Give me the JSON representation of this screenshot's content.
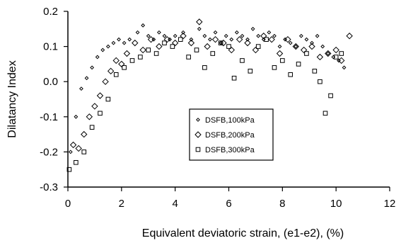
{
  "chart_data": {
    "type": "scatter",
    "xlabel": "Equivalent deviatoric strain, (e1-e2), (%)",
    "ylabel": "Dilatancy Index",
    "xlim": [
      0,
      12
    ],
    "ylim": [
      -0.3,
      0.2
    ],
    "x_ticks": [
      0,
      2,
      4,
      6,
      8,
      10,
      12
    ],
    "x_tick_labels": [
      "0",
      "2",
      "4",
      "6",
      "8",
      "10",
      "12"
    ],
    "y_ticks": [
      -0.3,
      -0.2,
      -0.1,
      0.0,
      0.1,
      0.2
    ],
    "y_tick_labels": [
      "-0.3",
      "-0.2",
      "-0.1",
      "0.0",
      "0.1",
      "0.2"
    ],
    "grid": false,
    "legend_position": "center-right",
    "series": [
      {
        "name": "DSFB,100kPa",
        "marker": "small-diamond",
        "points": [
          [
            0.1,
            -0.2
          ],
          [
            0.3,
            -0.1
          ],
          [
            0.5,
            -0.02
          ],
          [
            0.7,
            0.01
          ],
          [
            0.9,
            0.04
          ],
          [
            1.1,
            0.07
          ],
          [
            1.3,
            0.09
          ],
          [
            1.5,
            0.1
          ],
          [
            1.7,
            0.11
          ],
          [
            1.9,
            0.12
          ],
          [
            2.1,
            0.11
          ],
          [
            2.3,
            0.12
          ],
          [
            2.6,
            0.14
          ],
          [
            2.8,
            0.16
          ],
          [
            3.0,
            0.13
          ],
          [
            3.2,
            0.12
          ],
          [
            3.4,
            0.14
          ],
          [
            3.6,
            0.13
          ],
          [
            3.8,
            0.12
          ],
          [
            4.0,
            0.13
          ],
          [
            4.3,
            0.14
          ],
          [
            4.6,
            0.12
          ],
          [
            4.9,
            0.15
          ],
          [
            5.1,
            0.13
          ],
          [
            5.3,
            0.12
          ],
          [
            5.5,
            0.14
          ],
          [
            5.7,
            0.11
          ],
          [
            5.9,
            0.13
          ],
          [
            6.1,
            0.12
          ],
          [
            6.3,
            0.14
          ],
          [
            6.5,
            0.13
          ],
          [
            6.7,
            0.12
          ],
          [
            6.9,
            0.15
          ],
          [
            7.1,
            0.13
          ],
          [
            7.3,
            0.12
          ],
          [
            7.5,
            0.14
          ],
          [
            7.7,
            0.13
          ],
          [
            7.9,
            0.1
          ],
          [
            8.1,
            0.12
          ],
          [
            8.3,
            0.11
          ],
          [
            8.5,
            0.1
          ],
          [
            8.7,
            0.13
          ],
          [
            8.9,
            0.12
          ],
          [
            9.1,
            0.11
          ],
          [
            9.3,
            0.13
          ],
          [
            9.5,
            0.1
          ],
          [
            9.7,
            0.08
          ],
          [
            9.9,
            0.07
          ],
          [
            10.1,
            0.06
          ],
          [
            10.3,
            0.04
          ]
        ]
      },
      {
        "name": "DSFB,200kPa",
        "marker": "diamond",
        "points": [
          [
            0.2,
            -0.18
          ],
          [
            0.4,
            -0.19
          ],
          [
            0.6,
            -0.15
          ],
          [
            0.8,
            -0.1
          ],
          [
            1.0,
            -0.07
          ],
          [
            1.2,
            -0.04
          ],
          [
            1.4,
            0.0
          ],
          [
            1.6,
            0.03
          ],
          [
            1.8,
            0.06
          ],
          [
            2.0,
            0.05
          ],
          [
            2.2,
            0.08
          ],
          [
            2.5,
            0.11
          ],
          [
            2.8,
            0.09
          ],
          [
            3.1,
            0.12
          ],
          [
            3.4,
            0.1
          ],
          [
            3.7,
            0.12
          ],
          [
            4.0,
            0.11
          ],
          [
            4.3,
            0.13
          ],
          [
            4.6,
            0.11
          ],
          [
            4.9,
            0.17
          ],
          [
            5.2,
            0.1
          ],
          [
            5.5,
            0.12
          ],
          [
            5.8,
            0.11
          ],
          [
            6.1,
            0.09
          ],
          [
            6.4,
            0.12
          ],
          [
            6.7,
            0.11
          ],
          [
            7.0,
            0.09
          ],
          [
            7.3,
            0.13
          ],
          [
            7.6,
            0.12
          ],
          [
            7.9,
            0.08
          ],
          [
            8.2,
            0.12
          ],
          [
            8.5,
            0.1
          ],
          [
            8.8,
            0.09
          ],
          [
            9.1,
            0.1
          ],
          [
            9.4,
            0.07
          ],
          [
            9.7,
            0.08
          ],
          [
            10.0,
            0.09
          ],
          [
            10.2,
            0.06
          ],
          [
            10.5,
            0.13
          ]
        ]
      },
      {
        "name": "DSFB,300kPa",
        "marker": "square",
        "points": [
          [
            0.05,
            -0.25
          ],
          [
            0.3,
            -0.23
          ],
          [
            0.6,
            -0.2
          ],
          [
            0.9,
            -0.13
          ],
          [
            1.2,
            -0.09
          ],
          [
            1.5,
            -0.05
          ],
          [
            1.8,
            0.02
          ],
          [
            2.1,
            0.04
          ],
          [
            2.4,
            0.06
          ],
          [
            2.7,
            0.07
          ],
          [
            3.0,
            0.09
          ],
          [
            3.3,
            0.08
          ],
          [
            3.6,
            0.11
          ],
          [
            3.9,
            0.1
          ],
          [
            4.2,
            0.12
          ],
          [
            4.5,
            0.07
          ],
          [
            4.8,
            0.09
          ],
          [
            5.1,
            0.04
          ],
          [
            5.4,
            0.08
          ],
          [
            5.7,
            0.11
          ],
          [
            6.0,
            0.1
          ],
          [
            6.2,
            0.01
          ],
          [
            6.5,
            0.06
          ],
          [
            6.8,
            0.03
          ],
          [
            7.1,
            0.1
          ],
          [
            7.4,
            0.12
          ],
          [
            7.7,
            0.04
          ],
          [
            8.0,
            0.06
          ],
          [
            8.3,
            0.02
          ],
          [
            8.6,
            0.05
          ],
          [
            8.9,
            0.08
          ],
          [
            9.2,
            0.03
          ],
          [
            9.4,
            0.0
          ],
          [
            9.6,
            -0.09
          ],
          [
            9.8,
            -0.04
          ],
          [
            10.0,
            0.07
          ],
          [
            10.2,
            0.08
          ]
        ]
      }
    ]
  }
}
